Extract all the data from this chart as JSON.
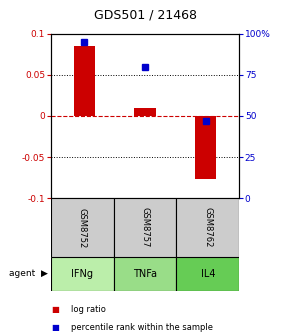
{
  "title": "GDS501 / 21468",
  "samples": [
    "GSM8752",
    "GSM8757",
    "GSM8762"
  ],
  "agents": [
    "IFNg",
    "TNFa",
    "IL4"
  ],
  "log_ratio": [
    0.085,
    0.01,
    -0.077
  ],
  "percentile_rank": [
    95,
    80,
    47
  ],
  "ylim_left": [
    -0.1,
    0.1
  ],
  "ylim_right": [
    0,
    100
  ],
  "yticks_left": [
    -0.1,
    -0.05,
    0,
    0.05,
    0.1
  ],
  "yticks_right": [
    0,
    25,
    50,
    75,
    100
  ],
  "ytick_labels_left": [
    "-0.1",
    "-0.05",
    "0",
    "0.05",
    "0.1"
  ],
  "ytick_labels_right": [
    "0",
    "25",
    "50",
    "75",
    "100%"
  ],
  "bar_color": "#cc0000",
  "dot_color": "#0000cc",
  "bar_width": 0.35,
  "sample_bg": "#cccccc",
  "agent_bg_light": "#bbeeaa",
  "agent_bg_mid": "#99dd88",
  "agent_bg_dark": "#66cc55",
  "zero_line_color": "#cc0000",
  "legend_bar_label": "log ratio",
  "legend_dot_label": "percentile rank within the sample"
}
